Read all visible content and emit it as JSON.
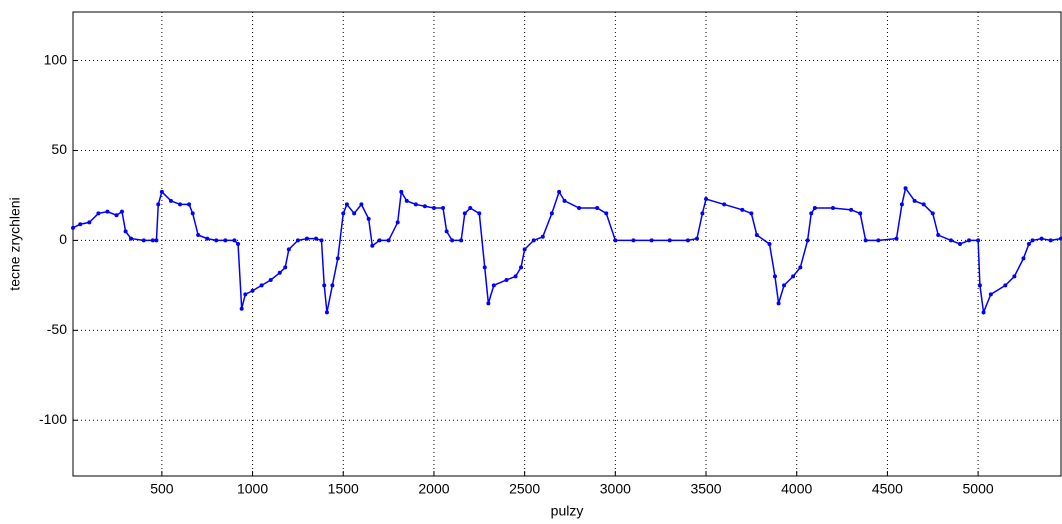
{
  "chart_data": {
    "type": "line",
    "x_label": "pulzy",
    "y_label": "tecne zrychleni",
    "x": [
      10,
      50,
      100,
      150,
      200,
      250,
      280,
      300,
      330,
      400,
      450,
      470,
      480,
      500,
      550,
      600,
      650,
      670,
      700,
      750,
      800,
      850,
      900,
      920,
      940,
      960,
      1000,
      1050,
      1100,
      1150,
      1180,
      1200,
      1250,
      1300,
      1350,
      1380,
      1395,
      1410,
      1440,
      1470,
      1500,
      1520,
      1560,
      1600,
      1640,
      1660,
      1700,
      1750,
      1800,
      1820,
      1850,
      1900,
      1950,
      2000,
      2050,
      2070,
      2100,
      2150,
      2170,
      2200,
      2250,
      2280,
      2300,
      2330,
      2400,
      2450,
      2480,
      2500,
      2550,
      2600,
      2650,
      2690,
      2720,
      2800,
      2900,
      2950,
      3000,
      3100,
      3200,
      3300,
      3400,
      3450,
      3480,
      3500,
      3600,
      3700,
      3750,
      3780,
      3850,
      3880,
      3900,
      3930,
      3980,
      4020,
      4060,
      4080,
      4100,
      4200,
      4300,
      4350,
      4380,
      4450,
      4550,
      4580,
      4600,
      4650,
      4700,
      4750,
      4780,
      4850,
      4900,
      4950,
      5000,
      5010,
      5030,
      5070,
      5150,
      5200,
      5250,
      5280,
      5300,
      5350,
      5400,
      5457
    ],
    "series": [
      {
        "name": "tecne zrychleni",
        "color": "#0000ff",
        "values": [
          7,
          9,
          10,
          15,
          16,
          14,
          16,
          5,
          1,
          0,
          0,
          0,
          20,
          27,
          22,
          20,
          20,
          15,
          3,
          1,
          0,
          0,
          0,
          -2,
          -38,
          -30,
          -28,
          -25,
          -22,
          -18,
          -15,
          -5,
          0,
          1,
          1,
          0,
          -25,
          -40,
          -25,
          -10,
          15,
          20,
          15,
          20,
          12,
          -3,
          0,
          0,
          10,
          27,
          22,
          20,
          19,
          18,
          18,
          5,
          0,
          0,
          15,
          18,
          15,
          -15,
          -35,
          -25,
          -22,
          -20,
          -15,
          -5,
          0,
          2,
          15,
          27,
          22,
          18,
          18,
          15,
          0,
          0,
          0,
          0,
          0,
          1,
          15,
          23,
          20,
          17,
          15,
          3,
          -2,
          -20,
          -35,
          -25,
          -20,
          -15,
          0,
          15,
          18,
          18,
          17,
          15,
          0,
          0,
          1,
          20,
          29,
          22,
          20,
          15,
          3,
          0,
          -2,
          0,
          0,
          -25,
          -40,
          -30,
          -25,
          -20,
          -10,
          -2,
          0,
          1,
          0,
          1
        ]
      }
    ],
    "xlim": [
      10,
      5457
    ],
    "ylim": [
      -131,
      127
    ],
    "xticks": [
      500,
      1000,
      1500,
      2000,
      2500,
      3000,
      3500,
      4000,
      4500,
      5000
    ],
    "yticks": [
      -100,
      -50,
      0,
      50,
      100
    ],
    "grid": true
  }
}
